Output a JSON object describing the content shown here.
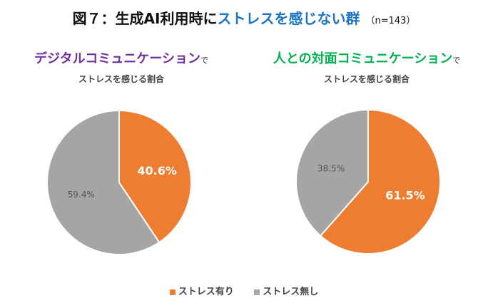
{
  "title": {
    "prefix": "図７：生成AI利用時に",
    "highlight": "ストレスを感じない群",
    "n": "（n=143）",
    "highlight_color": "#1a73c4"
  },
  "chart_data": [
    {
      "type": "pie",
      "title_main": "デジタルコミュニケーション",
      "title_suffix": "で",
      "subtitle": "ストレスを感じる割合",
      "title_color": "#7030a0",
      "categories": [
        "ストレス有り",
        "ストレス無し"
      ],
      "values": [
        40.6,
        59.4
      ],
      "labels": [
        "40.6%",
        "59.4%"
      ],
      "colors": [
        "#ed7d31",
        "#a5a5a5"
      ]
    },
    {
      "type": "pie",
      "title_main": "人との対面コミュニケーション",
      "title_suffix": "で",
      "subtitle": "ストレスを感じる割合",
      "title_color": "#00b050",
      "categories": [
        "ストレス有り",
        "ストレス無し"
      ],
      "values": [
        61.5,
        38.5
      ],
      "labels": [
        "61.5%",
        "38.5%"
      ],
      "colors": [
        "#ed7d31",
        "#a5a5a5"
      ]
    }
  ],
  "legend": [
    {
      "label": "ストレス有り",
      "color": "#ed7d31"
    },
    {
      "label": "ストレス無し",
      "color": "#a5a5a5"
    }
  ]
}
